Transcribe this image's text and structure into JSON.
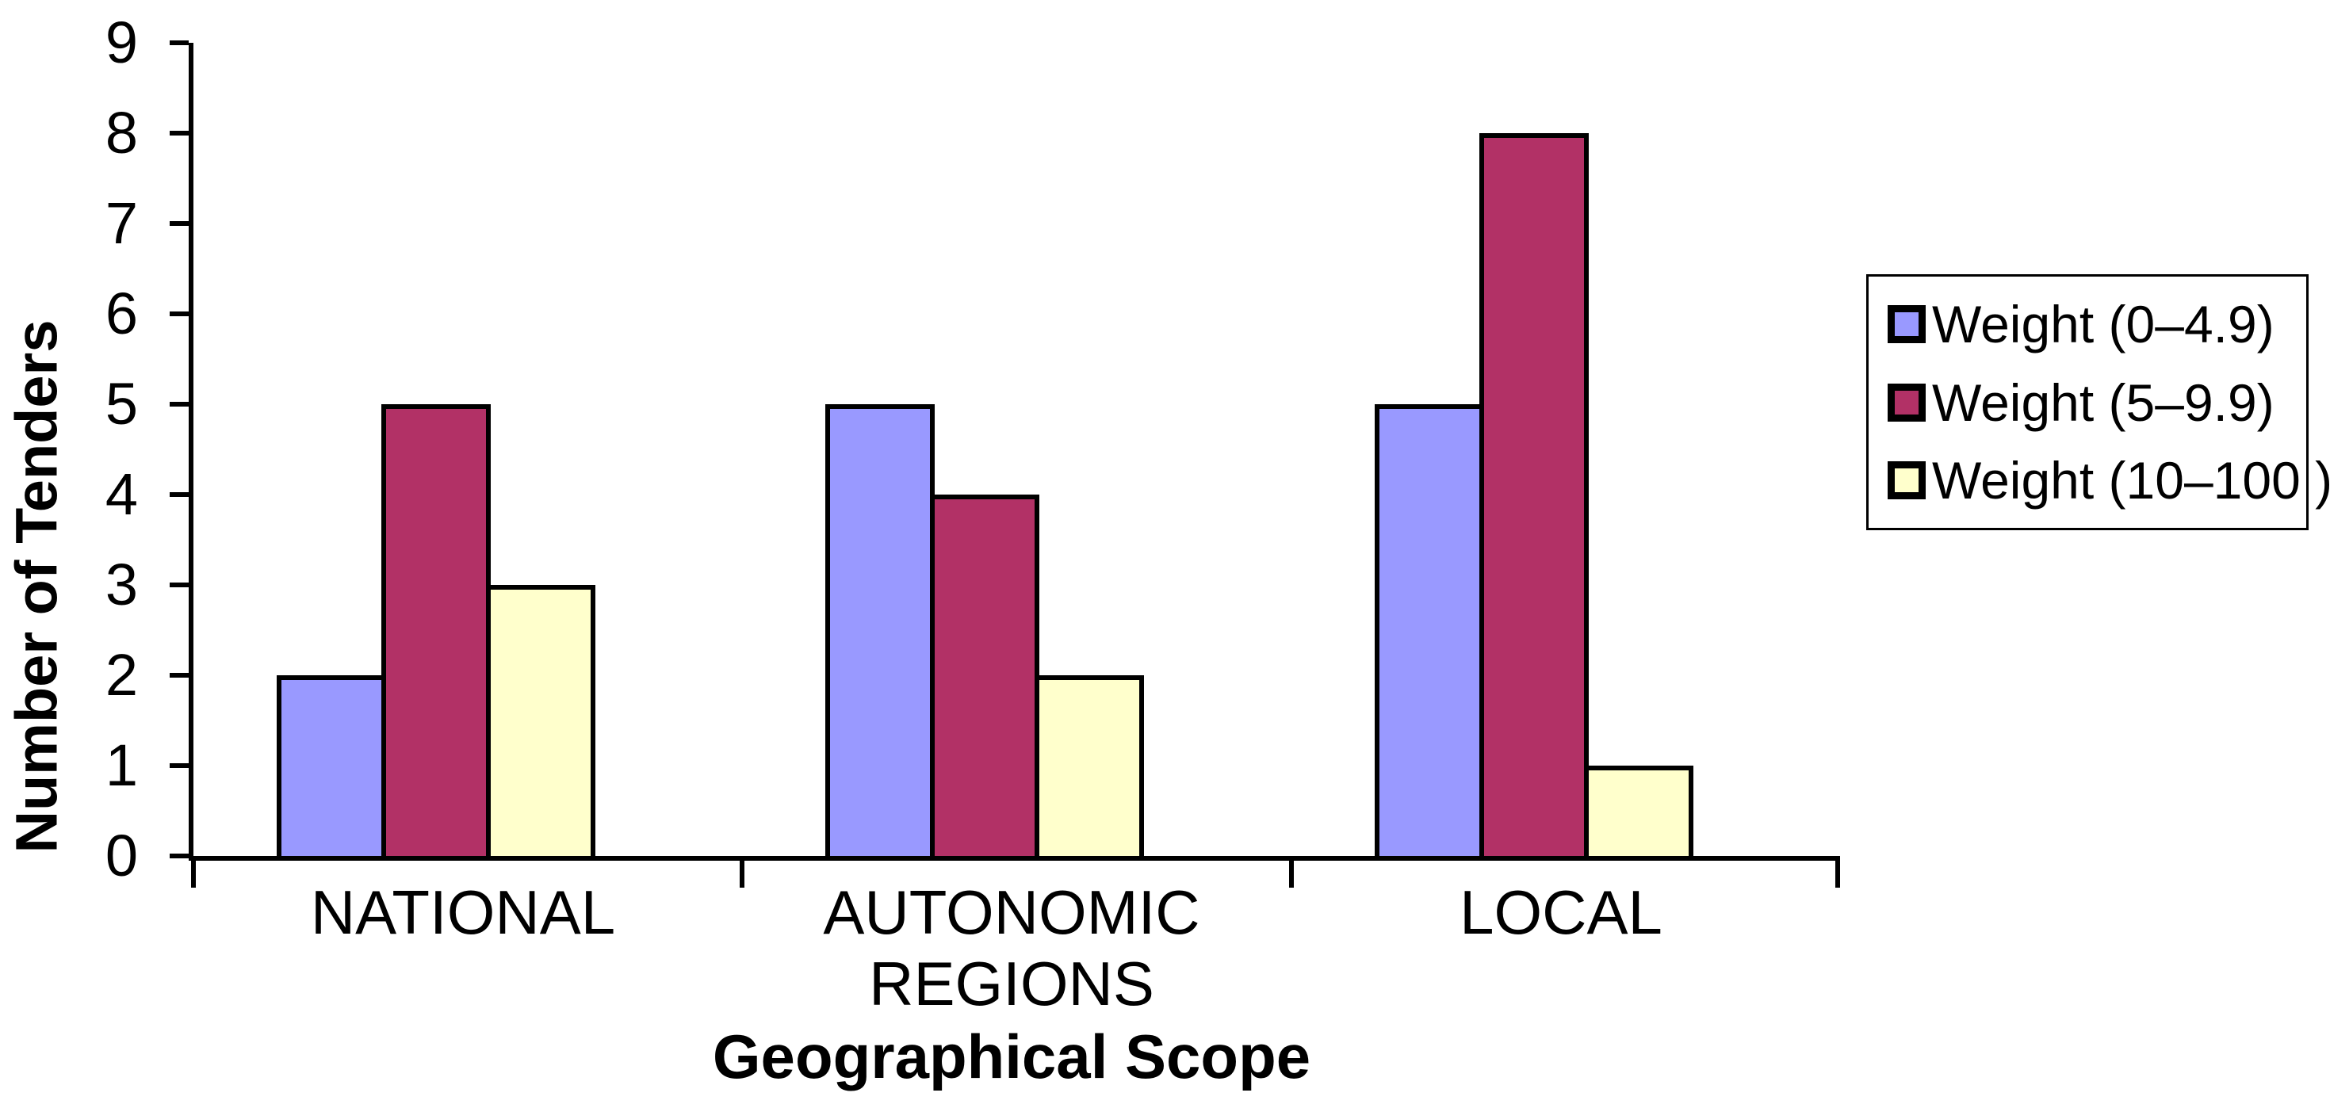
{
  "chart_data": {
    "type": "bar",
    "title": "",
    "xlabel": "Geographical Scope",
    "ylabel": "Number of Tenders",
    "categories": [
      "NATIONAL",
      "AUTONOMIC REGIONS",
      "LOCAL"
    ],
    "series": [
      {
        "name": "Weight (0–4.9)",
        "color": "#9999FF",
        "values": [
          2,
          5,
          5
        ]
      },
      {
        "name": "Weight (5–9.9)",
        "color": "#B23166",
        "values": [
          5,
          4,
          8
        ]
      },
      {
        "name": "Weight (10–100 )",
        "color": "#FFFFCC",
        "values": [
          3,
          2,
          1
        ]
      }
    ],
    "ylim": [
      0,
      9
    ],
    "yticks": [
      0,
      1,
      2,
      3,
      4,
      5,
      6,
      7,
      8,
      9
    ],
    "grid": false,
    "legend_position": "right",
    "bar_border_color": "#000000",
    "axis_color": "#000000",
    "background_color": "#FFFFFF"
  }
}
